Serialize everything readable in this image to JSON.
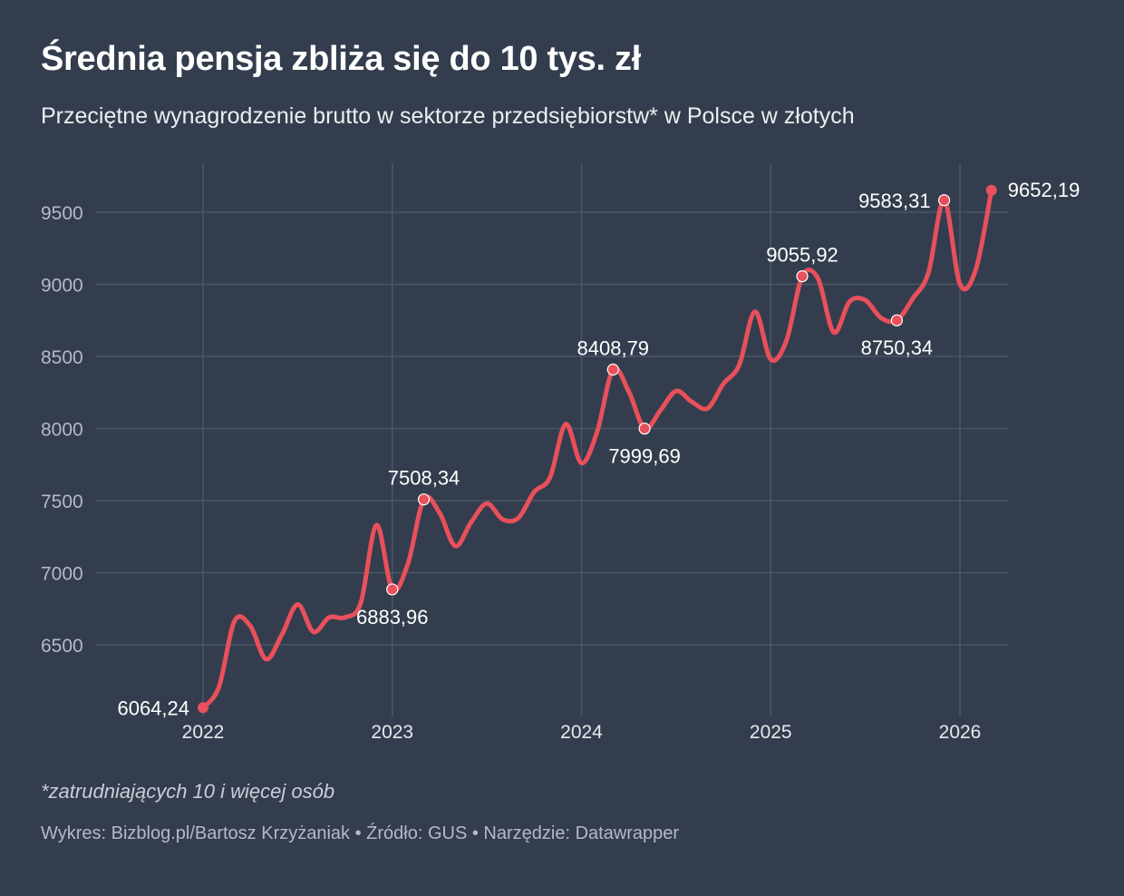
{
  "title": "Średnia pensja zbliża się do 10 tys. zł",
  "subtitle": "Przeciętne wynagrodzenie brutto w sektorze przedsiębiorstw* w Polsce w złotych",
  "note": "*zatrudniających 10 i więcej osób",
  "footer": "Wykres: Bizblog.pl/Bartosz Krzyżaniak • Źródło: GUS • Narzędzie: Datawrapper",
  "colors": {
    "background": "#333d4d",
    "line": "#e8505b",
    "grid": "#4b5667"
  },
  "chart_data": {
    "type": "line",
    "title": "Średnia pensja zbliża się do 10 tys. zł",
    "xlabel": "",
    "ylabel": "",
    "x_start": "2022-01",
    "x_end": "2026-03",
    "frequency": "monthly",
    "x_ticks": [
      "2022",
      "2023",
      "2024",
      "2025",
      "2026"
    ],
    "y_ticks": [
      6500,
      7000,
      7500,
      8000,
      8500,
      9000,
      9500
    ],
    "ylim": [
      6050,
      9800
    ],
    "grid": true,
    "series": [
      {
        "name": "Przeciętne wynagrodzenie brutto",
        "values": [
          6064.24,
          6205,
          6665,
          6630,
          6400,
          6570,
          6780,
          6590,
          6690,
          6690,
          6790,
          7330,
          6883.96,
          7065,
          7508.34,
          7415,
          7185,
          7350,
          7480,
          7370,
          7380,
          7560,
          7660,
          8030,
          7760,
          7980,
          8408.79,
          8256,
          7999.69,
          8125,
          8260,
          8185,
          8140,
          8310,
          8440,
          8810,
          8480,
          8610,
          9055.92,
          9040,
          8667,
          8880,
          8890,
          8767,
          8750.34,
          8900,
          9080,
          9583.31,
          9001,
          9100,
          9652.19
        ]
      }
    ],
    "annotations": [
      {
        "index": 0,
        "label": "6064,24",
        "style": "dot",
        "pos": "left"
      },
      {
        "index": 12,
        "label": "6883,96",
        "style": "ring",
        "pos": "below"
      },
      {
        "index": 14,
        "label": "7508,34",
        "style": "ring",
        "pos": "above"
      },
      {
        "index": 26,
        "label": "8408,79",
        "style": "ring",
        "pos": "above"
      },
      {
        "index": 28,
        "label": "7999,69",
        "style": "ring",
        "pos": "below"
      },
      {
        "index": 38,
        "label": "9055,92",
        "style": "ring",
        "pos": "above"
      },
      {
        "index": 44,
        "label": "8750,34",
        "style": "ring",
        "pos": "below"
      },
      {
        "index": 47,
        "label": "9583,31",
        "style": "ring",
        "pos": "left"
      },
      {
        "index": 50,
        "label": "9652,19",
        "style": "dot",
        "pos": "right"
      }
    ]
  }
}
